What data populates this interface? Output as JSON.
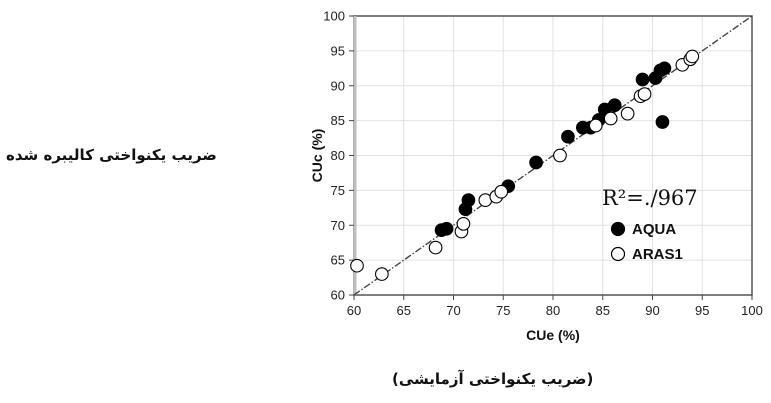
{
  "labels": {
    "fa_y": "ضريب يکنواختی کاليبره شده",
    "fa_x": "(ضريب يکنواختی آزمايشی)"
  },
  "chart_data": {
    "type": "scatter",
    "xlabel": "CUe (%)",
    "ylabel": "CUc (%)",
    "xlim": [
      60,
      100
    ],
    "ylim": [
      60,
      100
    ],
    "xticks": [
      60,
      65,
      70,
      75,
      80,
      85,
      90,
      95,
      100
    ],
    "yticks": [
      60,
      65,
      70,
      75,
      80,
      85,
      90,
      95,
      100
    ],
    "annotation": "R²=./967",
    "fit_line": [
      [
        60,
        60
      ],
      [
        100,
        100
      ]
    ],
    "legend_position": "lower-right",
    "series": [
      {
        "name": "AQUA",
        "marker": "filled-circle",
        "color": "#000000",
        "points": [
          [
            68.8,
            69.3
          ],
          [
            69.3,
            69.5
          ],
          [
            71.2,
            72.3
          ],
          [
            71.5,
            73.6
          ],
          [
            75.5,
            75.6
          ],
          [
            78.3,
            79.0
          ],
          [
            81.5,
            82.7
          ],
          [
            83.0,
            84.0
          ],
          [
            83.8,
            84.0
          ],
          [
            84.6,
            85.1
          ],
          [
            85.2,
            86.6
          ],
          [
            86.2,
            87.2
          ],
          [
            89.0,
            90.9
          ],
          [
            90.3,
            91.1
          ],
          [
            90.8,
            92.2
          ],
          [
            91.2,
            92.5
          ],
          [
            91.0,
            84.8
          ]
        ]
      },
      {
        "name": "ARAS1",
        "marker": "open-circle",
        "color": "#000000",
        "points": [
          [
            60.3,
            64.2
          ],
          [
            62.8,
            63.0
          ],
          [
            68.2,
            66.8
          ],
          [
            70.8,
            69.1
          ],
          [
            71.0,
            70.2
          ],
          [
            73.2,
            73.6
          ],
          [
            74.3,
            74.1
          ],
          [
            74.8,
            74.8
          ],
          [
            80.7,
            80.0
          ],
          [
            84.3,
            84.3
          ],
          [
            85.8,
            85.3
          ],
          [
            87.5,
            86.0
          ],
          [
            88.8,
            88.5
          ],
          [
            89.2,
            88.8
          ],
          [
            93.0,
            93.0
          ],
          [
            93.8,
            93.8
          ],
          [
            94.0,
            94.2
          ]
        ]
      }
    ]
  }
}
